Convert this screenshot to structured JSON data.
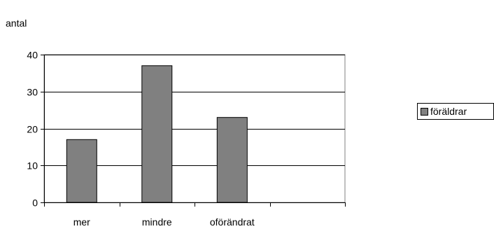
{
  "chart_data": {
    "type": "bar",
    "ylabel": "antal",
    "xlabel": "",
    "categories": [
      "mer",
      "mindre",
      "oförändrat",
      ""
    ],
    "series": [
      {
        "name": "föräldrar",
        "values": [
          17,
          37,
          23,
          null
        ]
      }
    ],
    "ylim": [
      0,
      40
    ],
    "yticks": [
      0,
      10,
      20,
      30,
      40
    ],
    "grid": true,
    "legend": "right",
    "colors": {
      "bar": "#808080",
      "bar_stroke": "#000000",
      "grid": "#000000",
      "plot_bg": "#ffffff"
    }
  }
}
